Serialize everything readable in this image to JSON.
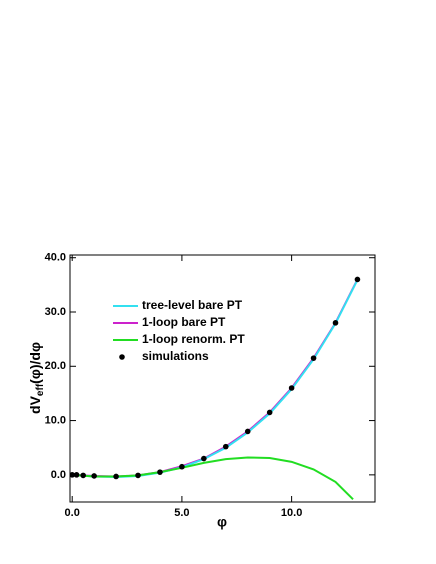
{
  "chart_data": {
    "type": "line",
    "x_label": "φ",
    "y_label": {
      "main": "dV",
      "sub": "eff",
      "rest": "(φ)/dφ"
    },
    "xlim": [
      -0.1,
      13.8
    ],
    "ylim": [
      -5,
      40.5
    ],
    "xticks": [
      {
        "value": 0,
        "label": "0.0"
      },
      {
        "value": 5,
        "label": "5.0"
      },
      {
        "value": 10,
        "label": "10.0"
      }
    ],
    "yticks": [
      {
        "value": 0,
        "label": "0.0"
      },
      {
        "value": 10,
        "label": "10.0"
      },
      {
        "value": 20,
        "label": "20.0"
      },
      {
        "value": 30,
        "label": "30.0"
      },
      {
        "value": 40,
        "label": "40.0"
      }
    ],
    "series": [
      {
        "name": "tree-level bare PT",
        "color": "#33e0f0",
        "style": "line",
        "x": [
          0,
          1,
          2,
          3,
          4,
          5,
          6,
          7,
          8,
          9,
          10,
          11,
          12,
          13
        ],
        "values": [
          0,
          -0.3,
          -0.4,
          -0.2,
          0.4,
          1.4,
          2.9,
          5.0,
          7.8,
          11.3,
          15.8,
          21.3,
          27.9,
          35.9
        ]
      },
      {
        "name": "1-loop bare PT",
        "color": "#cc22cc",
        "style": "line",
        "x": [
          0,
          1,
          2,
          3,
          4,
          5,
          6,
          7,
          8,
          9,
          10,
          11,
          12,
          13
        ],
        "values": [
          0,
          -0.2,
          -0.3,
          -0.1,
          0.5,
          1.6,
          3.0,
          5.2,
          8.0,
          11.5,
          16.0,
          21.5,
          28.0,
          36.0
        ]
      },
      {
        "name": "1-loop renorm. PT",
        "color": "#22dd22",
        "style": "line",
        "x": [
          0,
          1,
          2,
          3,
          4,
          5,
          6,
          7,
          8,
          9,
          10,
          11,
          12,
          12.8
        ],
        "values": [
          0,
          -0.3,
          -0.3,
          -0.1,
          0.5,
          1.3,
          2.2,
          2.9,
          3.2,
          3.1,
          2.4,
          1.0,
          -1.3,
          -4.5
        ]
      },
      {
        "name": "simulations",
        "color": "#000000",
        "style": "points",
        "x": [
          0,
          0.2,
          0.5,
          1,
          2,
          3,
          4,
          5,
          6,
          7,
          8,
          9,
          10,
          11,
          12,
          13
        ],
        "values": [
          0,
          0,
          -0.1,
          -0.2,
          -0.3,
          -0.1,
          0.5,
          1.5,
          3.0,
          5.2,
          8.0,
          11.5,
          16.0,
          21.5,
          28.0,
          36.0
        ]
      }
    ]
  }
}
